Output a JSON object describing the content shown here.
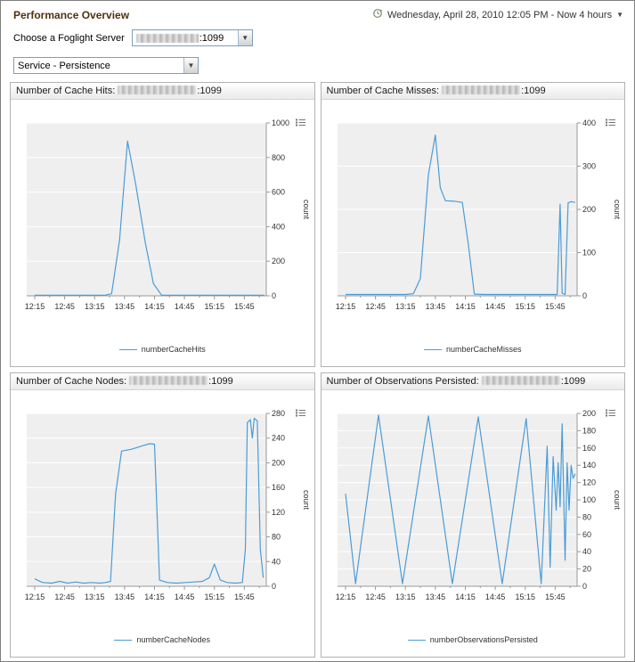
{
  "header": {
    "title": "Performance Overview",
    "time_range": "Wednesday, April 28, 2010 12:05 PM - Now 4 hours"
  },
  "server_selector": {
    "label": "Choose a Foglight Server",
    "port": ":1099"
  },
  "service_selector": {
    "value": "Service - Persistence"
  },
  "icons": {
    "time_range_icon": "clock-history-icon",
    "combo_caret": "▼",
    "chart_menu_icon": "chart-options-list-icon"
  },
  "chart_layout": {
    "x_domain": [
      727,
      967
    ],
    "x_major_ticks": [
      735,
      765,
      795,
      825,
      855,
      885,
      915,
      945
    ],
    "x_minor_step": 15,
    "line_color": "#4b9cd6",
    "plot_bg": "#efefef",
    "grid_color": "#ffffff",
    "axis_color": "#999999",
    "tick_text_color": "#333333"
  },
  "chart_data": [
    {
      "type": "line",
      "title_prefix": "Number of Cache Hits: ",
      "title_suffix": ":1099",
      "ylabel": "count",
      "ylim": [
        0,
        1000
      ],
      "yticks": [
        0,
        200,
        400,
        600,
        800,
        1000
      ],
      "x_tick_labels": [
        "12:15",
        "12:45",
        "13:15",
        "13:45",
        "14:15",
        "14:45",
        "15:15",
        "15:45"
      ],
      "legend": "numberCacheHits",
      "series": [
        {
          "name": "numberCacheHits",
          "x": [
            735,
            750,
            765,
            780,
            795,
            805,
            812,
            820,
            828,
            836,
            846,
            854,
            862,
            875,
            890,
            905,
            920,
            935,
            950,
            965
          ],
          "y": [
            3,
            3,
            3,
            3,
            3,
            3,
            12,
            320,
            895,
            650,
            300,
            70,
            4,
            3,
            3,
            3,
            3,
            3,
            3,
            3
          ]
        }
      ]
    },
    {
      "type": "line",
      "title_prefix": "Number of Cache Misses: ",
      "title_suffix": ":1099",
      "ylabel": "count",
      "ylim": [
        0,
        400
      ],
      "yticks": [
        0,
        100,
        200,
        300,
        400
      ],
      "x_tick_labels": [
        "12:15",
        "12:45",
        "13:15",
        "13:45",
        "14:15",
        "14:45",
        "15:15",
        "15:45"
      ],
      "legend": "numberCacheMisses",
      "series": [
        {
          "name": "numberCacheMisses",
          "x": [
            735,
            750,
            765,
            780,
            795,
            803,
            810,
            818,
            825,
            830,
            835,
            844,
            852,
            858,
            864,
            875,
            890,
            905,
            920,
            935,
            943,
            947,
            950,
            952,
            955,
            958,
            961,
            965
          ],
          "y": [
            3,
            3,
            3,
            3,
            3,
            5,
            40,
            280,
            372,
            250,
            220,
            219,
            216,
            120,
            4,
            3,
            3,
            3,
            3,
            3,
            3,
            3,
            212,
            6,
            3,
            215,
            218,
            216
          ]
        }
      ]
    },
    {
      "type": "line",
      "title_prefix": "Number of Cache Nodes: ",
      "title_suffix": ":1099",
      "ylabel": "count",
      "ylim": [
        0,
        280
      ],
      "yticks": [
        0,
        40,
        80,
        120,
        160,
        200,
        240,
        280
      ],
      "x_tick_labels": [
        "12:15",
        "12:45",
        "13:15",
        "13:45",
        "14:15",
        "14:45",
        "15:15",
        "15:45"
      ],
      "legend": "numberCacheNodes",
      "series": [
        {
          "name": "numberCacheNodes",
          "x": [
            735,
            743,
            752,
            760,
            768,
            776,
            784,
            792,
            800,
            806,
            811,
            816,
            822,
            832,
            842,
            850,
            855,
            860,
            868,
            877,
            886,
            895,
            903,
            910,
            915,
            921,
            928,
            936,
            943,
            946,
            948,
            951,
            953,
            955,
            958,
            961,
            964
          ],
          "y": [
            12,
            6,
            5,
            8,
            5,
            7,
            5,
            6,
            5,
            6,
            8,
            150,
            219,
            222,
            227,
            231,
            230,
            10,
            6,
            5,
            6,
            7,
            8,
            14,
            36,
            10,
            6,
            5,
            6,
            60,
            265,
            270,
            240,
            272,
            268,
            60,
            14
          ]
        }
      ]
    },
    {
      "type": "line",
      "title_prefix": "Number of Observations Persisted: ",
      "title_suffix": ":1099",
      "ylabel": "count",
      "ylim": [
        0,
        200
      ],
      "yticks": [
        0,
        20,
        40,
        60,
        80,
        100,
        120,
        140,
        160,
        180,
        200
      ],
      "x_tick_labels": [
        "12:15",
        "12:45",
        "13:15",
        "13:45",
        "14:15",
        "14:45",
        "15:15",
        "15:45"
      ],
      "legend": "numberObservationsPersisted",
      "series": [
        {
          "name": "numberObservationsPersisted",
          "x": [
            735,
            745,
            768,
            792,
            818,
            842,
            868,
            892,
            916,
            931,
            937,
            940,
            943,
            946,
            948,
            950,
            952,
            955,
            957,
            959,
            961,
            963,
            965
          ],
          "y": [
            107,
            3,
            198,
            3,
            197,
            3,
            196,
            3,
            194,
            3,
            162,
            22,
            150,
            88,
            143,
            92,
            188,
            30,
            143,
            88,
            140,
            125,
            130
          ]
        }
      ]
    }
  ]
}
